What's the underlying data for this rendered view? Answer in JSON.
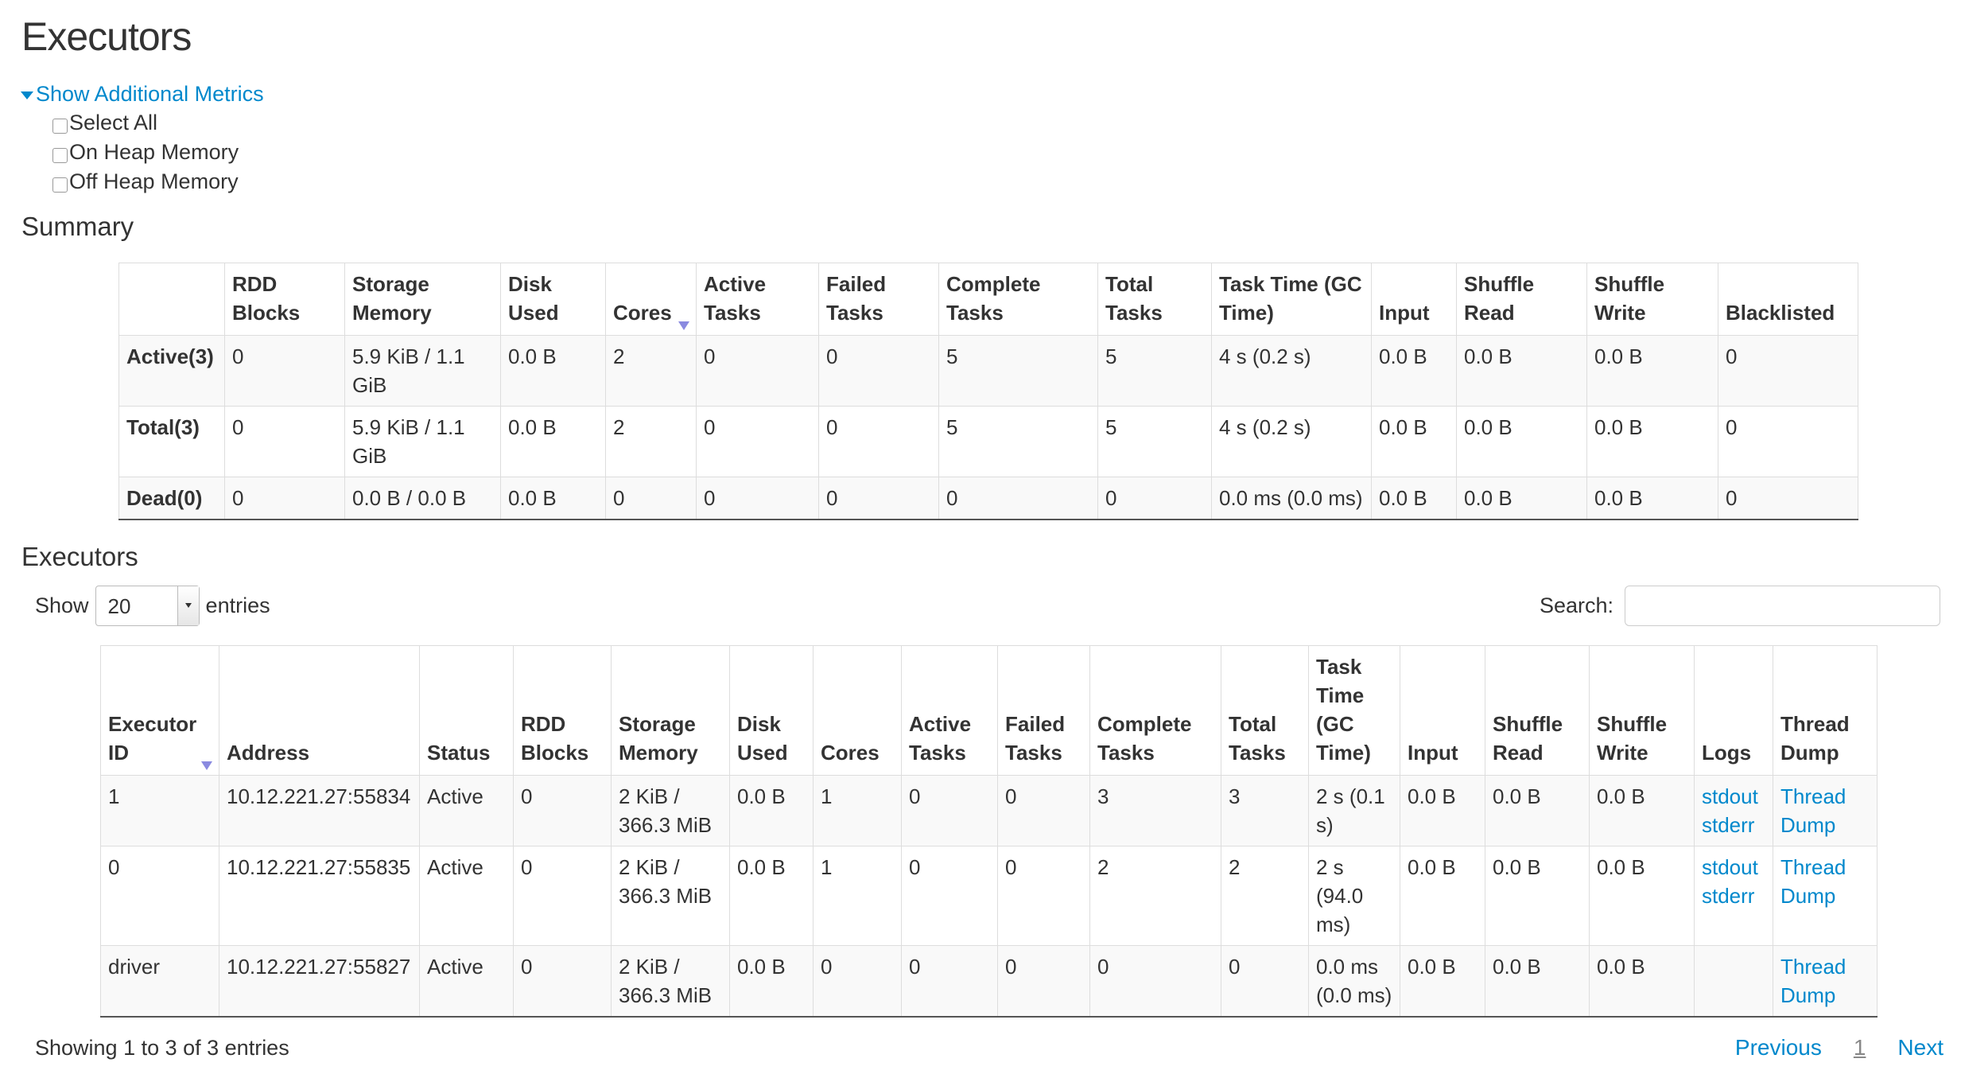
{
  "page_title": "Executors",
  "metrics": {
    "toggle_label": "Show Additional Metrics",
    "options": [
      {
        "label": "Select All",
        "checked": false
      },
      {
        "label": "On Heap Memory",
        "checked": false
      },
      {
        "label": "Off Heap Memory",
        "checked": false
      }
    ]
  },
  "summary": {
    "heading": "Summary",
    "columns": [
      "",
      "RDD Blocks",
      "Storage Memory",
      "Disk Used",
      "Cores",
      "Active Tasks",
      "Failed Tasks",
      "Complete Tasks",
      "Total Tasks",
      "Task Time (GC Time)",
      "Input",
      "Shuffle Read",
      "Shuffle Write",
      "Blacklisted"
    ],
    "sorted_column": "Cores",
    "rows": [
      [
        "Active(3)",
        "0",
        "5.9 KiB / 1.1 GiB",
        "0.0 B",
        "2",
        "0",
        "0",
        "5",
        "5",
        "4 s (0.2 s)",
        "0.0 B",
        "0.0 B",
        "0.0 B",
        "0"
      ],
      [
        "Total(3)",
        "0",
        "5.9 KiB / 1.1 GiB",
        "0.0 B",
        "2",
        "0",
        "0",
        "5",
        "5",
        "4 s (0.2 s)",
        "0.0 B",
        "0.0 B",
        "0.0 B",
        "0"
      ],
      [
        "Dead(0)",
        "0",
        "0.0 B / 0.0 B",
        "0.0 B",
        "0",
        "0",
        "0",
        "0",
        "0",
        "0.0 ms (0.0 ms)",
        "0.0 B",
        "0.0 B",
        "0.0 B",
        "0"
      ]
    ]
  },
  "executors": {
    "heading": "Executors",
    "show_label": "Show",
    "entries_value": "20",
    "entries_label": "entries",
    "search_label": "Search:",
    "search_value": "",
    "columns": [
      "Executor ID",
      "Address",
      "Status",
      "RDD Blocks",
      "Storage Memory",
      "Disk Used",
      "Cores",
      "Active Tasks",
      "Failed Tasks",
      "Complete Tasks",
      "Total Tasks",
      "Task Time (GC Time)",
      "Input",
      "Shuffle Read",
      "Shuffle Write",
      "Logs",
      "Thread Dump"
    ],
    "sorted_column": "Executor ID",
    "rows": [
      {
        "cells": [
          "1",
          "10.12.221.27:55834",
          "Active",
          "0",
          "2 KiB / 366.3 MiB",
          "0.0 B",
          "1",
          "0",
          "0",
          "3",
          "3",
          "2 s (0.1 s)",
          "0.0 B",
          "0.0 B",
          "0.0 B"
        ],
        "logs": [
          "stdout",
          "stderr"
        ],
        "thread_dump": "Thread Dump"
      },
      {
        "cells": [
          "0",
          "10.12.221.27:55835",
          "Active",
          "0",
          "2 KiB / 366.3 MiB",
          "0.0 B",
          "1",
          "0",
          "0",
          "2",
          "2",
          "2 s (94.0 ms)",
          "0.0 B",
          "0.0 B",
          "0.0 B"
        ],
        "logs": [
          "stdout",
          "stderr"
        ],
        "thread_dump": "Thread Dump"
      },
      {
        "cells": [
          "driver",
          "10.12.221.27:55827",
          "Active",
          "0",
          "2 KiB / 366.3 MiB",
          "0.0 B",
          "0",
          "0",
          "0",
          "0",
          "0",
          "0.0 ms (0.0 ms)",
          "0.0 B",
          "0.0 B",
          "0.0 B"
        ],
        "logs": [],
        "thread_dump": "Thread Dump"
      }
    ],
    "info": "Showing 1 to 3 of 3 entries",
    "pagination": {
      "previous": "Previous",
      "current": "1",
      "next": "Next"
    }
  },
  "colors": {
    "link": "#0088cc",
    "stripe": "#f9f9f9",
    "border": "#dddddd"
  }
}
